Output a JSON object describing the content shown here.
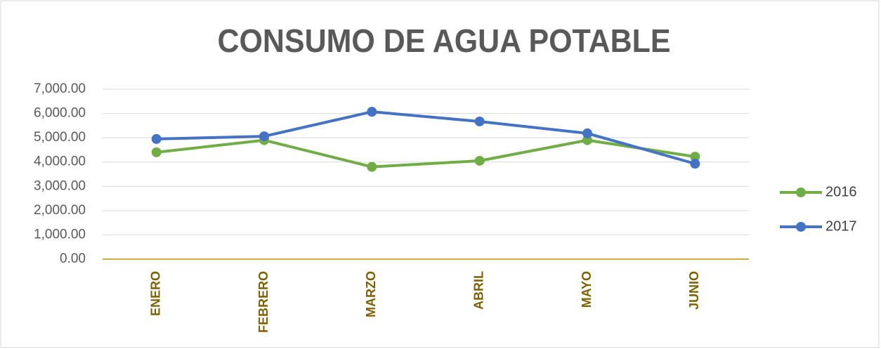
{
  "chart_data": {
    "type": "line",
    "title": "CONSUMO DE AGUA POTABLE",
    "categories": [
      "ENERO",
      "FEBRERO",
      "MARZO",
      "ABRIL",
      "MAYO",
      "JUNIO"
    ],
    "series": [
      {
        "name": "2016",
        "color": "#70ad47",
        "values": [
          4400,
          4900,
          3800,
          4050,
          4900,
          4220
        ]
      },
      {
        "name": "2017",
        "color": "#4472c4",
        "values": [
          4950,
          5060,
          6070,
          5670,
          5180,
          3930
        ]
      }
    ],
    "ylim": [
      0,
      7000
    ],
    "yticks": [
      {
        "value": 0,
        "label": "0.00"
      },
      {
        "value": 1000,
        "label": "1,000.00"
      },
      {
        "value": 2000,
        "label": "2,000.00"
      },
      {
        "value": 3000,
        "label": "3,000.00"
      },
      {
        "value": 4000,
        "label": "4,000.00"
      },
      {
        "value": 5000,
        "label": "5,000.00"
      },
      {
        "value": 6000,
        "label": "6,000.00"
      },
      {
        "value": 7000,
        "label": "7,000.00"
      }
    ],
    "grid": true,
    "legend": "right"
  }
}
